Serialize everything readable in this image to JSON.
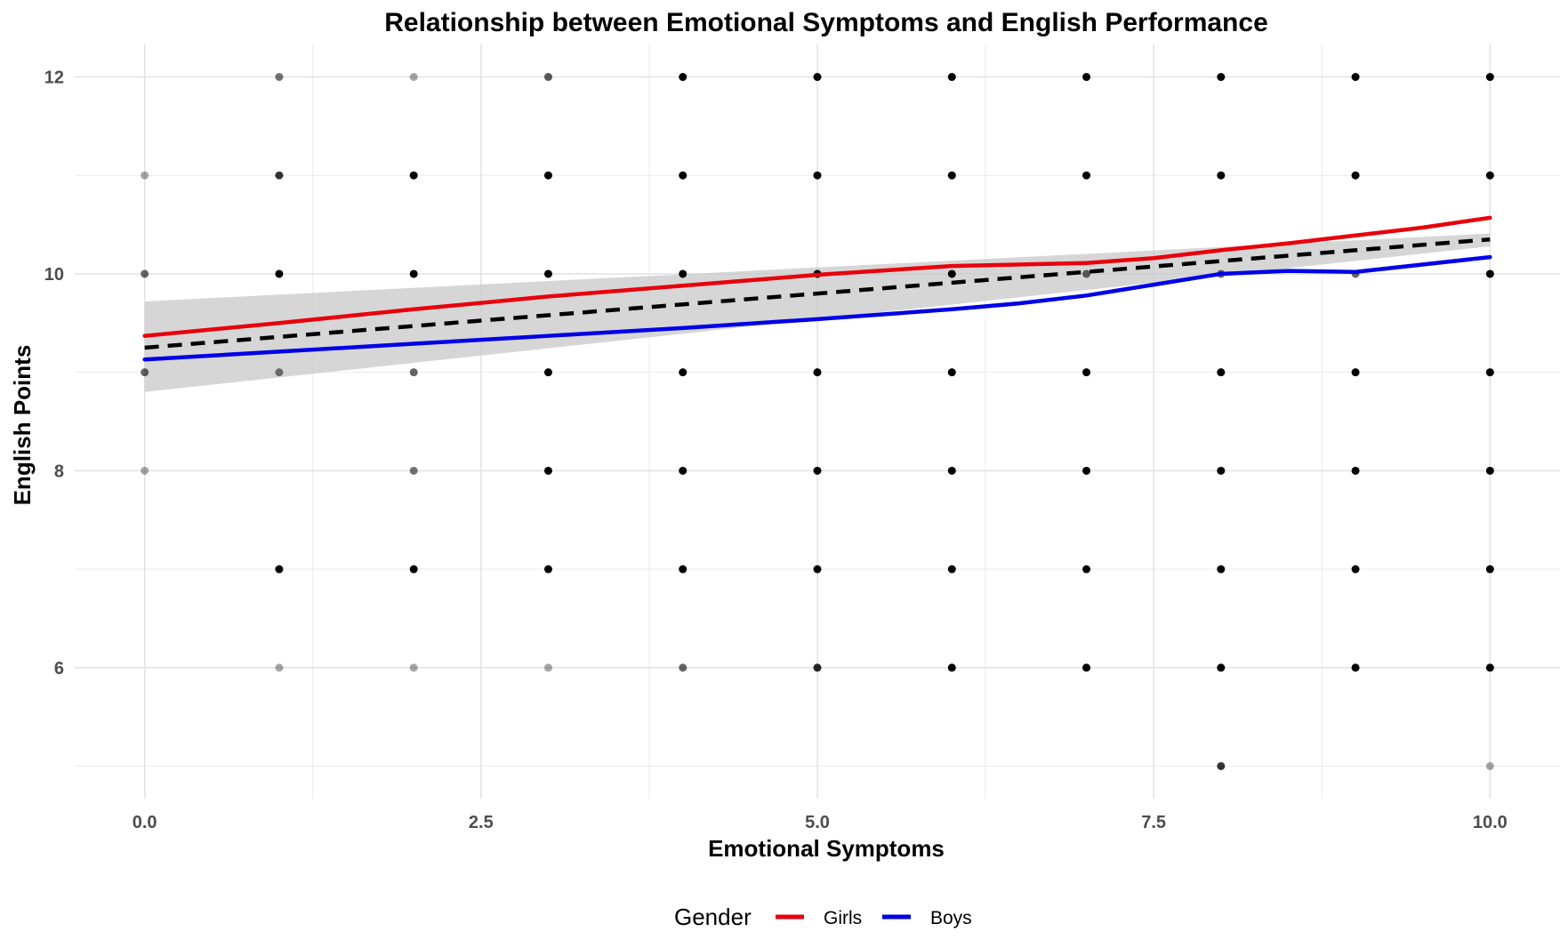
{
  "chart_data": {
    "type": "scatter",
    "title": "Relationship between Emotional Symptoms and English Performance",
    "xlabel": "Emotional Symptoms",
    "ylabel": "English Points",
    "xlim": [
      -0.52,
      10.52
    ],
    "ylim": [
      4.67,
      12.33
    ],
    "x_ticks": [
      0,
      2.5,
      5,
      7.5,
      10
    ],
    "x_tick_labels": [
      "0.0",
      "2.5",
      "5.0",
      "7.5",
      "10.0"
    ],
    "y_ticks": [
      6,
      8,
      10,
      12
    ],
    "y_tick_labels": [
      "6",
      "8",
      "10",
      "12"
    ],
    "grid": true,
    "legend": {
      "title": "Gender",
      "position": "bottom"
    },
    "points": [
      {
        "x": 0,
        "y": 11,
        "alpha": 0.35
      },
      {
        "x": 0,
        "y": 10,
        "alpha": 0.6
      },
      {
        "x": 0,
        "y": 9,
        "alpha": 0.6
      },
      {
        "x": 0,
        "y": 8,
        "alpha": 0.35
      },
      {
        "x": 1,
        "y": 12,
        "alpha": 0.55
      },
      {
        "x": 1,
        "y": 11,
        "alpha": 0.8
      },
      {
        "x": 1,
        "y": 10,
        "alpha": 1
      },
      {
        "x": 1,
        "y": 9,
        "alpha": 0.5
      },
      {
        "x": 1,
        "y": 7,
        "alpha": 1
      },
      {
        "x": 1,
        "y": 6,
        "alpha": 0.35
      },
      {
        "x": 2,
        "y": 12,
        "alpha": 0.35
      },
      {
        "x": 2,
        "y": 11,
        "alpha": 1
      },
      {
        "x": 2,
        "y": 10,
        "alpha": 1
      },
      {
        "x": 2,
        "y": 9,
        "alpha": 0.6
      },
      {
        "x": 2,
        "y": 8,
        "alpha": 0.55
      },
      {
        "x": 2,
        "y": 7,
        "alpha": 1
      },
      {
        "x": 2,
        "y": 6,
        "alpha": 0.35
      },
      {
        "x": 3,
        "y": 12,
        "alpha": 0.65
      },
      {
        "x": 3,
        "y": 11,
        "alpha": 1
      },
      {
        "x": 3,
        "y": 10,
        "alpha": 1
      },
      {
        "x": 3,
        "y": 9,
        "alpha": 1
      },
      {
        "x": 3,
        "y": 8,
        "alpha": 1
      },
      {
        "x": 3,
        "y": 7,
        "alpha": 1
      },
      {
        "x": 3,
        "y": 6,
        "alpha": 0.35
      },
      {
        "x": 4,
        "y": 12,
        "alpha": 1
      },
      {
        "x": 4,
        "y": 11,
        "alpha": 1
      },
      {
        "x": 4,
        "y": 10,
        "alpha": 1
      },
      {
        "x": 4,
        "y": 9,
        "alpha": 1
      },
      {
        "x": 4,
        "y": 8,
        "alpha": 1
      },
      {
        "x": 4,
        "y": 7,
        "alpha": 1
      },
      {
        "x": 4,
        "y": 6,
        "alpha": 0.6
      },
      {
        "x": 5,
        "y": 12,
        "alpha": 1
      },
      {
        "x": 5,
        "y": 11,
        "alpha": 1
      },
      {
        "x": 5,
        "y": 10,
        "alpha": 1
      },
      {
        "x": 5,
        "y": 9,
        "alpha": 1
      },
      {
        "x": 5,
        "y": 8,
        "alpha": 1
      },
      {
        "x": 5,
        "y": 7,
        "alpha": 1
      },
      {
        "x": 5,
        "y": 6,
        "alpha": 0.85
      },
      {
        "x": 6,
        "y": 12,
        "alpha": 1
      },
      {
        "x": 6,
        "y": 11,
        "alpha": 1
      },
      {
        "x": 6,
        "y": 10,
        "alpha": 1
      },
      {
        "x": 6,
        "y": 9,
        "alpha": 1
      },
      {
        "x": 6,
        "y": 8,
        "alpha": 1
      },
      {
        "x": 6,
        "y": 7,
        "alpha": 1
      },
      {
        "x": 6,
        "y": 6,
        "alpha": 1
      },
      {
        "x": 7,
        "y": 12,
        "alpha": 1
      },
      {
        "x": 7,
        "y": 11,
        "alpha": 1
      },
      {
        "x": 7,
        "y": 10,
        "alpha": 0.6
      },
      {
        "x": 7,
        "y": 9,
        "alpha": 1
      },
      {
        "x": 7,
        "y": 8,
        "alpha": 1
      },
      {
        "x": 7,
        "y": 7,
        "alpha": 1
      },
      {
        "x": 7,
        "y": 6,
        "alpha": 1
      },
      {
        "x": 8,
        "y": 12,
        "alpha": 1
      },
      {
        "x": 8,
        "y": 11,
        "alpha": 1
      },
      {
        "x": 8,
        "y": 10,
        "alpha": 0.6
      },
      {
        "x": 8,
        "y": 9,
        "alpha": 1
      },
      {
        "x": 8,
        "y": 8,
        "alpha": 1
      },
      {
        "x": 8,
        "y": 7,
        "alpha": 1
      },
      {
        "x": 8,
        "y": 6,
        "alpha": 1
      },
      {
        "x": 8,
        "y": 5,
        "alpha": 0.8
      },
      {
        "x": 9,
        "y": 12,
        "alpha": 1
      },
      {
        "x": 9,
        "y": 11,
        "alpha": 1
      },
      {
        "x": 9,
        "y": 10,
        "alpha": 0.6
      },
      {
        "x": 9,
        "y": 9,
        "alpha": 1
      },
      {
        "x": 9,
        "y": 8,
        "alpha": 1
      },
      {
        "x": 9,
        "y": 7,
        "alpha": 1
      },
      {
        "x": 9,
        "y": 6,
        "alpha": 1
      },
      {
        "x": 10,
        "y": 12,
        "alpha": 1
      },
      {
        "x": 10,
        "y": 11,
        "alpha": 1
      },
      {
        "x": 10,
        "y": 10,
        "alpha": 1
      },
      {
        "x": 10,
        "y": 9,
        "alpha": 1
      },
      {
        "x": 10,
        "y": 8,
        "alpha": 1
      },
      {
        "x": 10,
        "y": 7,
        "alpha": 1
      },
      {
        "x": 10,
        "y": 6,
        "alpha": 1
      },
      {
        "x": 10,
        "y": 5,
        "alpha": 0.35
      }
    ],
    "series": [
      {
        "name": "Girls",
        "color": "#e8000b",
        "style": "solid",
        "x": [
          0,
          1,
          2,
          3,
          4,
          5,
          6,
          7,
          7.5,
          8,
          8.5,
          9,
          9.5,
          10
        ],
        "y": [
          9.37,
          9.5,
          9.64,
          9.77,
          9.88,
          9.99,
          10.08,
          10.11,
          10.16,
          10.24,
          10.31,
          10.39,
          10.47,
          10.57
        ]
      },
      {
        "name": "Boys",
        "color": "#0000e6",
        "style": "solid",
        "x": [
          0,
          1,
          2,
          3,
          4,
          5,
          6,
          6.5,
          7,
          7.5,
          8,
          8.5,
          9,
          10
        ],
        "y": [
          9.13,
          9.21,
          9.29,
          9.37,
          9.45,
          9.54,
          9.64,
          9.7,
          9.78,
          9.89,
          10.0,
          10.03,
          10.02,
          10.17
        ]
      }
    ],
    "overall_fit": {
      "color": "#000000",
      "style": "dashed",
      "x": [
        0,
        10
      ],
      "y": [
        9.25,
        10.35
      ],
      "ci_lower": [
        8.8,
        10.28
      ],
      "ci_upper": [
        9.72,
        10.41
      ]
    }
  }
}
